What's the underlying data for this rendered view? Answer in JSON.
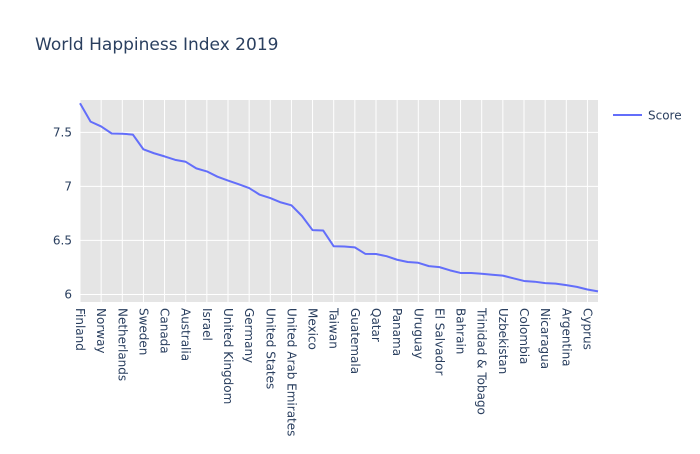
{
  "chart_data": {
    "type": "line",
    "title": "World Happiness Index 2019",
    "xlabel": "",
    "ylabel": "",
    "ylim": [
      5.93,
      7.8
    ],
    "yticks": [
      6,
      6.5,
      7,
      7.5
    ],
    "xtick_labels": [
      "Finland",
      "Norway",
      "Netherlands",
      "Sweden",
      "Canada",
      "Australia",
      "Israel",
      "United Kingdom",
      "Germany",
      "United States",
      "United Arab Emirates",
      "Mexico",
      "Taiwan",
      "Guatemala",
      "Qatar",
      "Panama",
      "Uruguay",
      "El Salvador",
      "Bahrain",
      "Trinidad & Tobago",
      "Uzbekistan",
      "Colombia",
      "Nicaragua",
      "Argentina",
      "Cyprus"
    ],
    "grid": true,
    "legend_position": "top-right",
    "series": [
      {
        "name": "Score",
        "color": "#636efa",
        "values": [
          7.77,
          7.6,
          7.555,
          7.49,
          7.488,
          7.48,
          7.343,
          7.307,
          7.278,
          7.246,
          7.228,
          7.167,
          7.139,
          7.09,
          7.054,
          7.021,
          6.985,
          6.923,
          6.892,
          6.852,
          6.825,
          6.726,
          6.595,
          6.592,
          6.446,
          6.444,
          6.436,
          6.375,
          6.374,
          6.354,
          6.321,
          6.3,
          6.293,
          6.262,
          6.253,
          6.223,
          6.199,
          6.198,
          6.192,
          6.182,
          6.174,
          6.149,
          6.125,
          6.118,
          6.105,
          6.1,
          6.086,
          6.07,
          6.046,
          6.028
        ]
      }
    ]
  }
}
